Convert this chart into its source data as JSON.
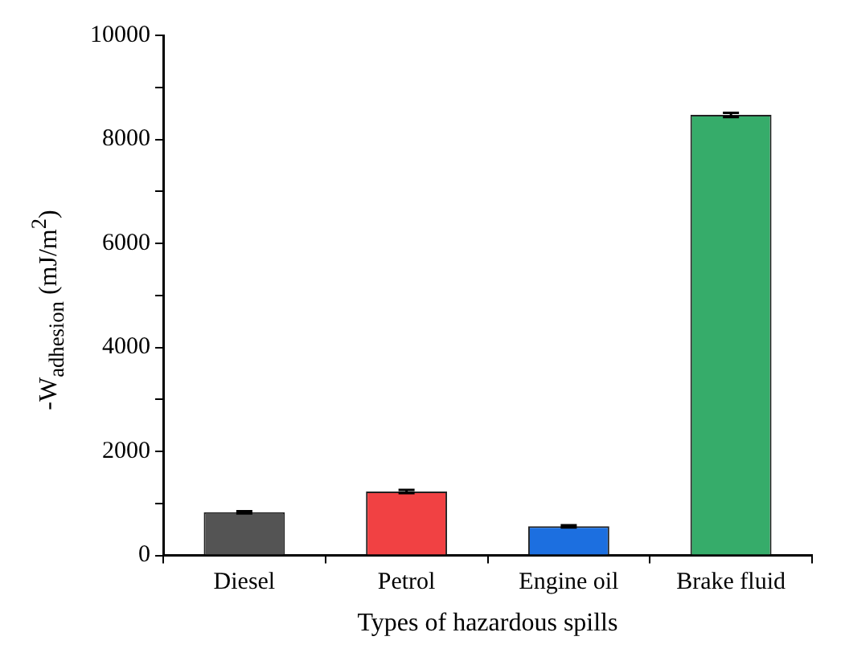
{
  "chart_data": {
    "type": "bar",
    "xlabel": "Types of hazardous spills",
    "ylabel": "-W$_{adhesion}$ (mJ/m$^{2}$)",
    "categories": [
      "Diesel",
      "Petrol",
      "Engine oil",
      "Brake fluid"
    ],
    "values": [
      830,
      1230,
      560,
      8470
    ],
    "errors": [
      20,
      30,
      20,
      40
    ],
    "colors": [
      "#545454",
      "#f14143",
      "#1c6fe0",
      "#36ac6a"
    ],
    "ylim": [
      0,
      10000
    ],
    "yticks": [
      0,
      {
        "value": 1000,
        "label": null
      },
      2000,
      {
        "value": 3000,
        "label": null
      },
      4000,
      {
        "value": 5000,
        "label": null
      },
      6000,
      {
        "value": 7000,
        "label": null
      },
      8000,
      {
        "value": 9000,
        "label": null
      },
      10000
    ],
    "grid": false,
    "legend": false
  }
}
